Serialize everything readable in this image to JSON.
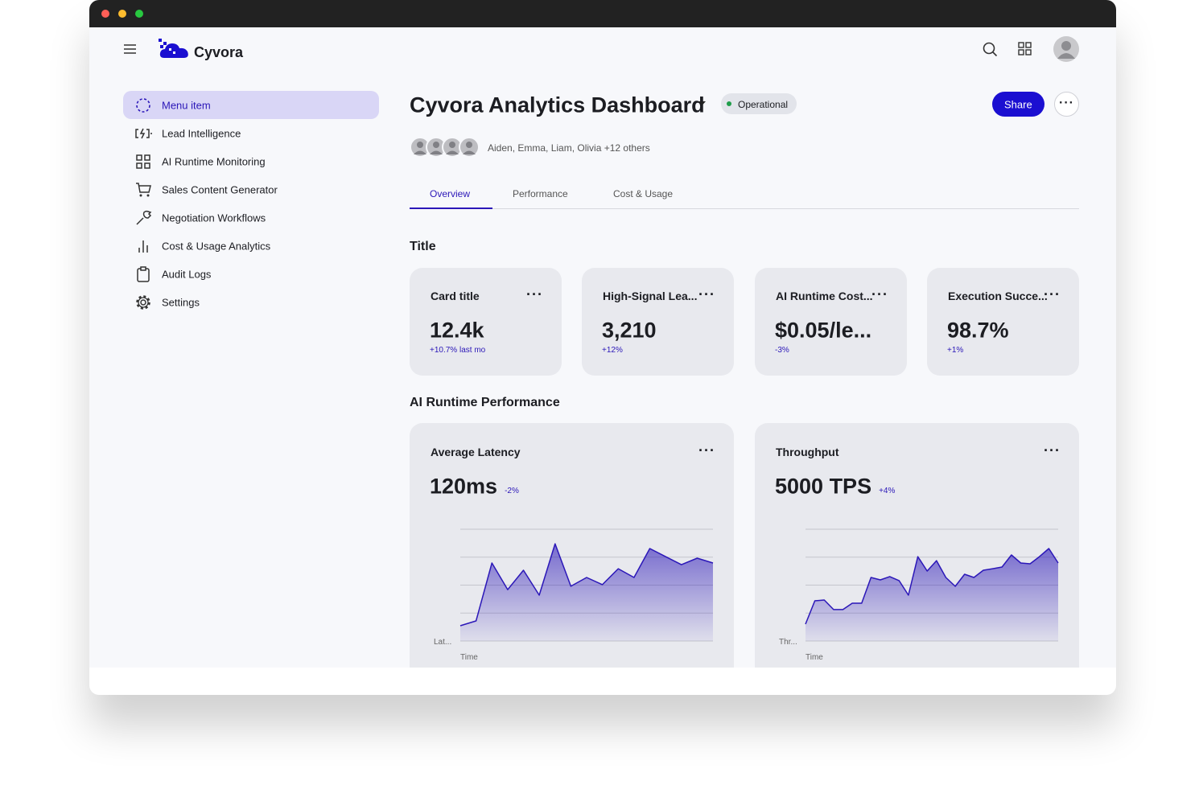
{
  "header": {
    "brand": "Cyvora"
  },
  "sidebar": {
    "items": [
      "Menu item",
      "Lead Intelligence",
      "AI Runtime Monitoring",
      "Sales Content Generator",
      "Negotiation Workflows",
      "Cost & Usage Analytics",
      "Audit Logs",
      "Settings"
    ]
  },
  "dashboard": {
    "title": "Cyvora Analytics Dashboard",
    "status": "Operational",
    "share": "Share",
    "collaborators": "Aiden, Emma, Liam, Olivia +12 others",
    "tabs": [
      "Overview",
      "Performance",
      "Cost & Usage"
    ],
    "section_title": "Title",
    "kpis": [
      {
        "title": "Card title",
        "value": "12.4k",
        "change": "+10.7% last mo"
      },
      {
        "title": "High-Signal Lea...",
        "value": "3,210",
        "change": "+12%"
      },
      {
        "title": "AI Runtime Cost...",
        "value": "$0.05/le...",
        "change": "-3%"
      },
      {
        "title": "Execution Succe...",
        "value": "98.7%",
        "change": "+1%"
      }
    ],
    "charts_title": "AI Runtime Performance"
  },
  "charts": [
    {
      "type": "area",
      "title": "Average Latency",
      "value": "120ms",
      "change": "-2%",
      "y_label": "Lat...",
      "x_label": "Time",
      "values": [
        13.7,
        18,
        69.8,
        46,
        63.3,
        41,
        87,
        49,
        56.8,
        50.4,
        64.7,
        56.8,
        82.7,
        75.5,
        68.3,
        74.1,
        69.8
      ],
      "ylim": [
        0,
        100
      ],
      "yticks": [
        0,
        25,
        50,
        75,
        100
      ],
      "color": "#2b17b8"
    },
    {
      "type": "area",
      "title": "Throughput",
      "value": "5000 TPS",
      "change": "+4%",
      "y_label": "Thr...",
      "x_label": "Time",
      "values": [
        15.1,
        36,
        36.7,
        28.1,
        28.1,
        33.8,
        33.8,
        56.8,
        54.7,
        57.6,
        54,
        41,
        75.5,
        62.6,
        71.9,
        56.8,
        48.9,
        59.7,
        56.8,
        63.3,
        64.7,
        66.2,
        77,
        69.8,
        69.1,
        75.5,
        82.7,
        69.8
      ],
      "ylim": [
        0,
        100
      ],
      "yticks": [
        0,
        25,
        50,
        75,
        100
      ],
      "color": "#2b17b8"
    }
  ]
}
